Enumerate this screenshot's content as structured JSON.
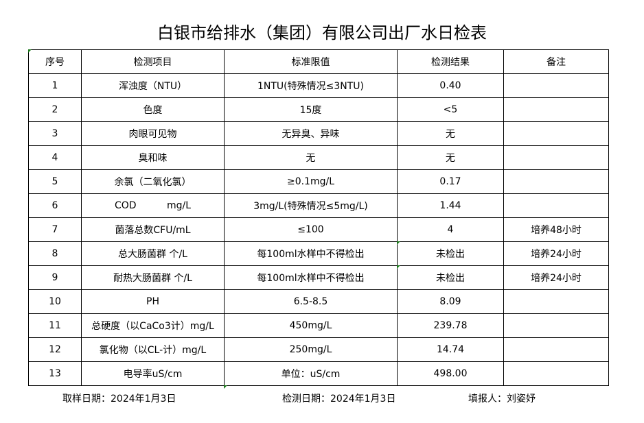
{
  "title": "白银市给排水（集团）有限公司出厂水日检表",
  "columns": [
    "序号",
    "检测项目",
    "标准限值",
    "检测结果",
    "备注"
  ],
  "rows": [
    [
      "1",
      "浑浊度（NTU）",
      "1NTU(特殊情况≤3NTU)",
      "0.40",
      ""
    ],
    [
      "2",
      "色度",
      "15度",
      "<5",
      ""
    ],
    [
      "3",
      "肉眼可见物",
      "无异臭、异味",
      "无",
      ""
    ],
    [
      "4",
      "臭和味",
      "无",
      "无",
      ""
    ],
    [
      "5",
      "余氯（二氧化氯）",
      "≥0.1mg/L",
      "0.17",
      ""
    ],
    [
      "6",
      "COD          mg/L",
      "3mg/L(特殊情况≤5mg/L)",
      "1.44",
      ""
    ],
    [
      "7",
      "菌落总数CFU/mL",
      "≤100",
      "4",
      "培养48小时"
    ],
    [
      "8",
      "总大肠菌群 个/L",
      "每100ml水样中不得检出",
      "未检出",
      "培养24小时"
    ],
    [
      "9",
      "耐热大肠菌群 个/L",
      "每100ml水样中不得检出",
      "未检出",
      "培养24小时"
    ],
    [
      "10",
      "PH",
      "6.5-8.5",
      "8.09",
      ""
    ],
    [
      "11",
      "总硬度（以CaCo3计）mg/L",
      "450mg/L",
      "239.78",
      ""
    ],
    [
      "12",
      "氯化物（以CL-计）mg/L",
      "250mg/L",
      "14.74",
      ""
    ],
    [
      "13",
      "电导率uS/cm",
      "单位：uS/cm",
      "498.00",
      ""
    ]
  ],
  "footer": {
    "sampling_date": "取样日期：2024年1月3日",
    "test_date": "检测日期：2024年1月3日",
    "filled_by": "填报人：刘姿妤"
  },
  "colors": {
    "cell_marker": "#1a7a1a"
  }
}
